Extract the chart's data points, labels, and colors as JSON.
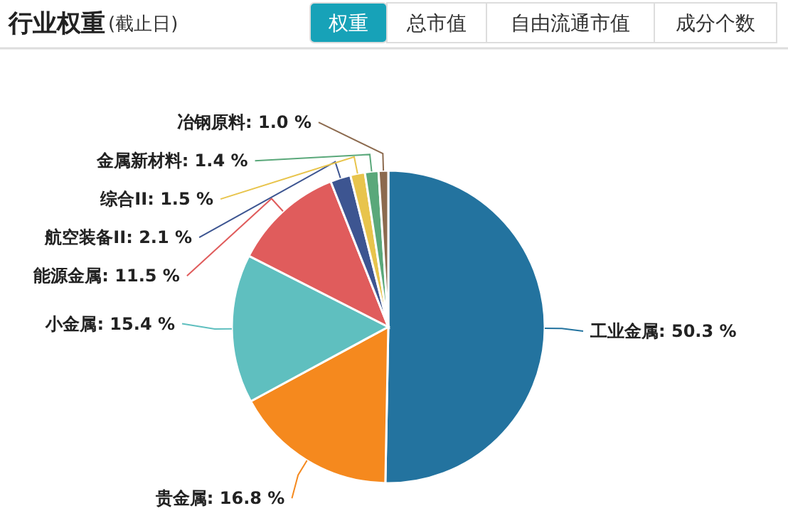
{
  "chart_data": {
    "type": "pie",
    "title": "行业权重",
    "subtitle": "(截止日)",
    "annotations": [
      "权重",
      "总市值",
      "自由流通市值",
      "成分个数"
    ],
    "categories": [
      "工业金属",
      "贵金属",
      "小金属",
      "能源金属",
      "航空装备II",
      "综合II",
      "金属新材料",
      "冶钢原料"
    ],
    "values": [
      50.3,
      16.8,
      15.4,
      11.5,
      2.1,
      1.5,
      1.4,
      1.0
    ],
    "colors": [
      "#23739f",
      "#f5891e",
      "#5fbfbf",
      "#e05c5c",
      "#3d5591",
      "#e8c44c",
      "#5aa87a",
      "#8c6a4e"
    ],
    "value_labels": [
      "50.3 %",
      "16.8 %",
      "15.4 %",
      "11.5 %",
      "2.1 %",
      "1.5 %",
      "1.4 %",
      "1.0 %"
    ]
  }
}
